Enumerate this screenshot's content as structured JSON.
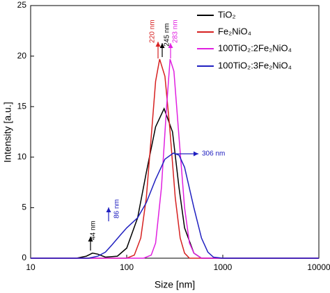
{
  "chart_data": {
    "type": "line",
    "xlabel": "Size [nm]",
    "ylabel": "Intensity [a.u.]",
    "xscale": "log",
    "xlim": [
      10,
      10000
    ],
    "xticks": [
      10,
      100,
      1000,
      10000
    ],
    "ylim": [
      0,
      25
    ],
    "yticks": [
      0,
      5,
      10,
      15,
      20,
      25
    ],
    "legend": "upper right",
    "series": [
      {
        "name": "TiO₂",
        "color": "#000000",
        "x": [
          10,
          30,
          38,
          44,
          50,
          60,
          80,
          100,
          130,
          160,
          200,
          245,
          300,
          350,
          400,
          500,
          600,
          1000,
          10000
        ],
        "values": [
          0,
          0,
          0.2,
          0.5,
          0.4,
          0.1,
          0.2,
          1.0,
          4,
          8.5,
          13,
          14.8,
          12.5,
          7,
          3,
          0.5,
          0,
          0,
          0
        ]
      },
      {
        "name": "Fe₂NiO₄",
        "color": "#d62020",
        "x": [
          10,
          100,
          120,
          140,
          160,
          180,
          200,
          220,
          250,
          280,
          320,
          360,
          400,
          450,
          1000,
          10000
        ],
        "values": [
          0,
          0,
          0.3,
          2,
          6,
          12,
          17.5,
          19.7,
          18,
          13,
          6,
          2,
          0.5,
          0,
          0,
          0
        ]
      },
      {
        "name": "100TiO₂:2Fe₂NiO₄",
        "color": "#e020e0",
        "x": [
          10,
          150,
          180,
          200,
          230,
          260,
          283,
          310,
          350,
          400,
          450,
          500,
          600,
          1000,
          10000
        ],
        "values": [
          0,
          0,
          0.3,
          1.5,
          7,
          15,
          19.7,
          18.5,
          12,
          5,
          1.5,
          0.5,
          0,
          0,
          0
        ]
      },
      {
        "name": "100TiO₂:3Fe₂NiO₄",
        "color": "#2020c0",
        "x": [
          10,
          40,
          50,
          60,
          70,
          86,
          100,
          130,
          160,
          200,
          250,
          306,
          350,
          400,
          500,
          600,
          700,
          800,
          1000,
          10000
        ],
        "values": [
          0,
          0,
          0.2,
          0.6,
          1.3,
          2.3,
          3,
          4,
          5.5,
          7.8,
          9.8,
          10.4,
          10.2,
          9,
          5,
          2,
          0.6,
          0.1,
          0,
          0
        ]
      }
    ],
    "annotations": [
      {
        "text": "220 nm",
        "color": "#d62020"
      },
      {
        "text": "245 nm",
        "color": "#000000"
      },
      {
        "text": "283 nm",
        "color": "#e020e0"
      },
      {
        "text": "306 nm",
        "color": "#2020c0"
      },
      {
        "text": "86 nm",
        "color": "#2020c0"
      },
      {
        "text": "44 nm",
        "color": "#000000"
      }
    ]
  }
}
